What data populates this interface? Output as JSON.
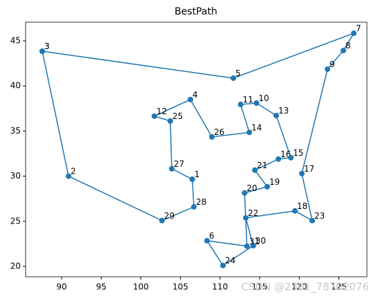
{
  "chart_data": {
    "type": "line",
    "title": "BestPath",
    "point_labels": [
      "3",
      "5",
      "7",
      "8",
      "9",
      "17",
      "23",
      "18",
      "22",
      "30",
      "24",
      "6",
      "31",
      "20",
      "19",
      "21",
      "16",
      "15",
      "13",
      "10",
      "11",
      "14",
      "26",
      "4",
      "12",
      "25",
      "27",
      "1",
      "28",
      "29",
      "2",
      "3"
    ],
    "x": [
      87.55,
      111.68,
      126.89,
      125.58,
      123.57,
      120.33,
      121.64,
      119.46,
      113.25,
      114.2,
      110.37,
      108.36,
      113.4,
      113.1,
      115.96,
      114.4,
      117.37,
      118.95,
      117.1,
      114.6,
      112.6,
      113.7,
      108.97,
      106.26,
      101.71,
      103.72,
      103.9,
      106.5,
      106.7,
      102.67,
      90.87,
      87.55
    ],
    "values": [
      43.85,
      40.86,
      45.84,
      43.93,
      41.86,
      30.29,
      25.08,
      26.15,
      25.38,
      22.3,
      20.1,
      22.85,
      22.24,
      28.14,
      28.83,
      30.67,
      31.9,
      32.05,
      36.72,
      38.1,
      37.95,
      34.85,
      34.35,
      38.49,
      36.65,
      36.11,
      30.82,
      29.66,
      26.6,
      25.08,
      30.0,
      43.85
    ],
    "color": "#1f77b4",
    "xlim": [
      85.45,
      128.55
    ],
    "ylim": [
      18.85,
      47.07
    ],
    "xticks": [
      90,
      95,
      100,
      105,
      110,
      115,
      120,
      125
    ],
    "yticks": [
      20,
      25,
      30,
      35,
      40,
      45
    ],
    "watermark": "CSDN @2301_78702076"
  }
}
